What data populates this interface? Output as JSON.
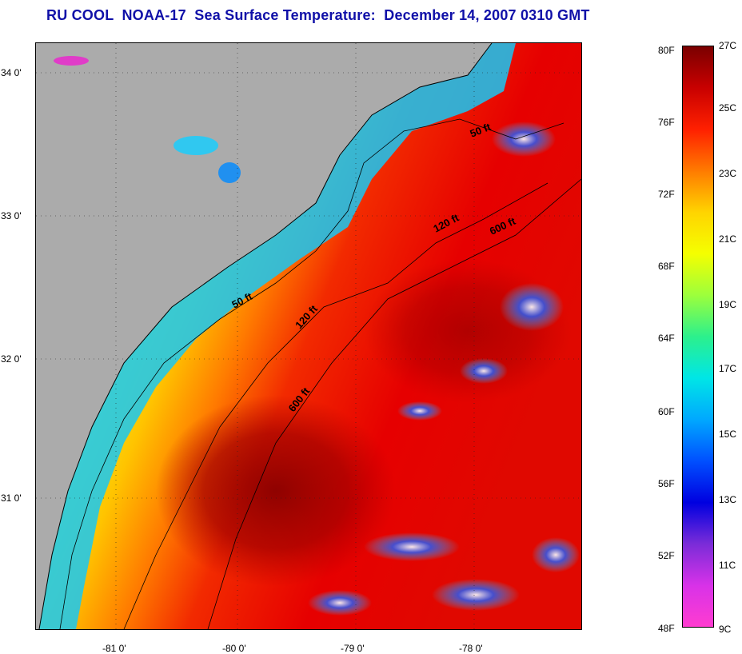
{
  "title": "RU COOL  NOAA-17  Sea Surface Temperature:  December 14, 2007 0310 GMT",
  "latitude_labels": [
    "34 0'",
    "33 0'",
    "32 0'",
    "31 0'"
  ],
  "longitude_labels": [
    "-81 0'",
    "-80 0'",
    "-79 0'",
    "-78 0'"
  ],
  "contour_labels": {
    "fifty_north": "50 ft",
    "fifty_south": "50 ft",
    "one_twenty_north": "120 ft",
    "one_twenty_south": "120 ft",
    "six_hundred_north": "600 ft",
    "six_hundred_south": "600 ft"
  },
  "colorbar": {
    "fahrenheit": [
      "80F",
      "76F",
      "72F",
      "68F",
      "64F",
      "60F",
      "56F",
      "52F",
      "48F"
    ],
    "celsius": [
      "27C",
      "25C",
      "23C",
      "21C",
      "19C",
      "17C",
      "15C",
      "13C",
      "11C",
      "9C"
    ],
    "colors": [
      "#7a0000",
      "#c80000",
      "#ff2000",
      "#ff7a00",
      "#ffd400",
      "#f5ff00",
      "#9cff3c",
      "#2cf08c",
      "#00e6e6",
      "#00a8ff",
      "#0050ff",
      "#0000e0",
      "#7a2cd8",
      "#d832e8",
      "#ff3cd0"
    ]
  },
  "colors": {
    "land": "#ababab",
    "title": "#1010a8",
    "contour": "#000000"
  }
}
